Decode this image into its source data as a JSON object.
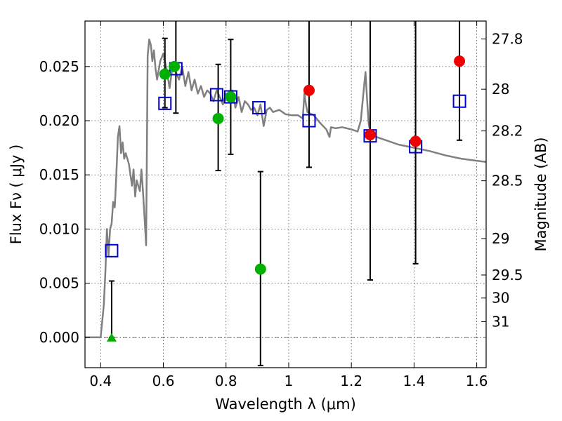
{
  "chart_data": {
    "type": "scatter",
    "xlabel": "Wavelength  λ (μm)",
    "ylabel": "Flux  Fν  ( μJy )",
    "y2label": "Magnitude (AB)",
    "xlim": [
      0.35,
      1.63
    ],
    "ylim": [
      -0.0028,
      0.0292
    ],
    "grid": true,
    "x_ticks": [
      {
        "v": 0.4,
        "label": "0.4"
      },
      {
        "v": 0.6,
        "label": "0.6"
      },
      {
        "v": 0.8,
        "label": "0.8"
      },
      {
        "v": 1.0,
        "label": "1"
      },
      {
        "v": 1.2,
        "label": "1.2"
      },
      {
        "v": 1.4,
        "label": "1.4"
      },
      {
        "v": 1.6,
        "label": "1.6"
      }
    ],
    "y_ticks": [
      {
        "v": 0.0,
        "label": "0.000"
      },
      {
        "v": 0.005,
        "label": "0.005"
      },
      {
        "v": 0.01,
        "label": "0.010"
      },
      {
        "v": 0.015,
        "label": "0.015"
      },
      {
        "v": 0.02,
        "label": "0.020"
      },
      {
        "v": 0.025,
        "label": "0.025"
      }
    ],
    "mag_ticks": [
      {
        "mag": 27.8,
        "label": "27.8"
      },
      {
        "mag": 28,
        "label": "28"
      },
      {
        "mag": 28.2,
        "label": "28.2"
      },
      {
        "mag": 28.5,
        "label": "28.5"
      },
      {
        "mag": 29,
        "label": "29"
      },
      {
        "mag": 29.5,
        "label": "29.5"
      },
      {
        "mag": 30,
        "label": "30"
      },
      {
        "mag": 31,
        "label": "31"
      }
    ],
    "colors": {
      "model": "#808080",
      "model_squares": "#0000cc",
      "green": "#00b000",
      "red": "#ee0000",
      "errorbar": "#000000"
    },
    "model_spectrum": {
      "x": [
        0.35,
        0.4,
        0.41,
        0.415,
        0.42,
        0.425,
        0.43,
        0.435,
        0.44,
        0.445,
        0.45,
        0.455,
        0.46,
        0.465,
        0.47,
        0.475,
        0.48,
        0.49,
        0.5,
        0.505,
        0.51,
        0.515,
        0.52,
        0.525,
        0.53,
        0.535,
        0.54,
        0.545,
        0.55,
        0.555,
        0.56,
        0.565,
        0.57,
        0.575,
        0.58,
        0.59,
        0.6,
        0.61,
        0.62,
        0.63,
        0.64,
        0.65,
        0.66,
        0.67,
        0.68,
        0.69,
        0.7,
        0.71,
        0.72,
        0.73,
        0.74,
        0.75,
        0.76,
        0.77,
        0.78,
        0.79,
        0.8,
        0.81,
        0.82,
        0.83,
        0.84,
        0.85,
        0.86,
        0.87,
        0.88,
        0.89,
        0.9,
        0.91,
        0.92,
        0.93,
        0.94,
        0.95,
        0.97,
        0.99,
        1.01,
        1.03,
        1.045,
        1.05,
        1.055,
        1.06,
        1.08,
        1.1,
        1.12,
        1.13,
        1.135,
        1.15,
        1.17,
        1.2,
        1.22,
        1.23,
        1.24,
        1.245,
        1.25,
        1.255,
        1.26,
        1.27,
        1.28,
        1.3,
        1.35,
        1.4,
        1.45,
        1.5,
        1.55,
        1.6,
        1.63
      ],
      "y": [
        0.0,
        0.0,
        0.003,
        0.006,
        0.01,
        0.0075,
        0.01,
        0.0105,
        0.0125,
        0.012,
        0.015,
        0.0185,
        0.0195,
        0.017,
        0.018,
        0.0165,
        0.017,
        0.016,
        0.014,
        0.0155,
        0.013,
        0.0145,
        0.014,
        0.0135,
        0.0155,
        0.0135,
        0.011,
        0.0085,
        0.026,
        0.0275,
        0.027,
        0.0255,
        0.0265,
        0.0248,
        0.0238,
        0.0255,
        0.0262,
        0.0248,
        0.023,
        0.0252,
        0.0245,
        0.0238,
        0.025,
        0.0232,
        0.0245,
        0.0228,
        0.0238,
        0.0225,
        0.0232,
        0.0222,
        0.0228,
        0.0225,
        0.0218,
        0.0228,
        0.0222,
        0.0215,
        0.0225,
        0.0218,
        0.0228,
        0.0212,
        0.0222,
        0.0208,
        0.0218,
        0.0215,
        0.021,
        0.0212,
        0.0205,
        0.0215,
        0.0195,
        0.021,
        0.0212,
        0.0208,
        0.021,
        0.0206,
        0.0205,
        0.0205,
        0.0202,
        0.0225,
        0.0215,
        0.0208,
        0.0205,
        0.0198,
        0.0192,
        0.0185,
        0.0194,
        0.0193,
        0.0194,
        0.0192,
        0.019,
        0.02,
        0.023,
        0.0245,
        0.022,
        0.0198,
        0.019,
        0.0188,
        0.0185,
        0.0183,
        0.0178,
        0.0175,
        0.0172,
        0.0168,
        0.0165,
        0.0163,
        0.0162
      ]
    },
    "errorbars": [
      {
        "x": 0.435,
        "lo": 0.0,
        "hi": 0.0052
      },
      {
        "x": 0.605,
        "lo": 0.0212,
        "hi": 0.0276
      },
      {
        "x": 0.64,
        "lo": 0.0207,
        "hi": 0.0292
      },
      {
        "x": 0.775,
        "lo": 0.0154,
        "hi": 0.0252
      },
      {
        "x": 0.815,
        "lo": 0.0169,
        "hi": 0.0275
      },
      {
        "x": 0.91,
        "lo": -0.0026,
        "hi": 0.0153
      },
      {
        "x": 1.065,
        "lo": 0.0157,
        "hi": 0.0292
      },
      {
        "x": 1.26,
        "lo": 0.0053,
        "hi": 0.0292
      },
      {
        "x": 1.405,
        "lo": 0.0068,
        "hi": 0.0292
      },
      {
        "x": 1.545,
        "lo": 0.0182,
        "hi": 0.0292
      }
    ],
    "series": [
      {
        "marker": "square",
        "x": [
          0.435,
          0.605,
          0.64,
          0.77,
          0.815,
          0.905,
          1.065,
          1.26,
          1.405,
          1.545
        ],
        "values": [
          0.008,
          0.0216,
          0.0248,
          0.0224,
          0.0222,
          0.0212,
          0.02,
          0.0186,
          0.0176,
          0.0218
        ]
      },
      {
        "marker": "circle",
        "color_key": "green",
        "x": [
          0.605,
          0.635,
          0.775,
          0.815,
          0.91
        ],
        "values": [
          0.0243,
          0.025,
          0.0202,
          0.0222,
          0.0063
        ]
      },
      {
        "marker": "triangle",
        "color_key": "green",
        "x": [
          0.435
        ],
        "values": [
          0.0
        ]
      },
      {
        "marker": "circle",
        "color_key": "red",
        "x": [
          1.065,
          1.26,
          1.405,
          1.545
        ],
        "values": [
          0.0228,
          0.0187,
          0.0181,
          0.0255
        ]
      }
    ]
  }
}
